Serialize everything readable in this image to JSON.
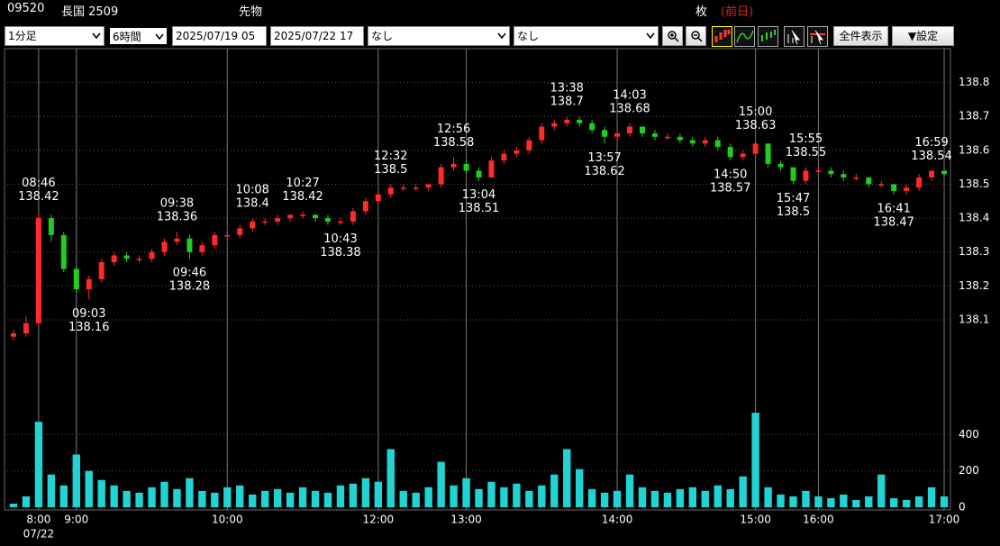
{
  "header": {
    "code": "09520",
    "name": "長国 2509",
    "kind": "先物",
    "unit": "枚",
    "prev": "(前日)"
  },
  "controls": {
    "interval": "1分足",
    "span": "6時間",
    "from": "2025/07/19 05",
    "to": "2025/07/22 17",
    "indicator1": "なし",
    "indicator2": "なし",
    "show_all": "全件表示",
    "settings": "▼設定"
  },
  "chart_data": {
    "type": "candlestick",
    "x": [
      null,
      null,
      "8:00",
      null,
      null,
      "9:00",
      null,
      null,
      null,
      null,
      null,
      null,
      null,
      null,
      null,
      null,
      null,
      "10:00",
      null,
      null,
      null,
      null,
      null,
      null,
      null,
      null,
      null,
      null,
      null,
      "12:00",
      null,
      null,
      null,
      null,
      null,
      null,
      "13:00",
      null,
      null,
      null,
      null,
      null,
      null,
      null,
      null,
      null,
      null,
      null,
      "14:00",
      null,
      null,
      null,
      null,
      null,
      null,
      null,
      null,
      null,
      null,
      "15:00",
      null,
      null,
      null,
      null,
      "16:00",
      null,
      null,
      null,
      null,
      null,
      null,
      null,
      null,
      null,
      "17:00"
    ],
    "date_label": "07/22",
    "candles": [
      [
        138.05,
        138.07,
        138.04,
        138.06
      ],
      [
        138.06,
        138.11,
        138.05,
        138.09
      ],
      [
        138.09,
        138.42,
        138.08,
        138.4
      ],
      [
        138.4,
        138.41,
        138.33,
        138.35
      ],
      [
        138.35,
        138.36,
        138.24,
        138.25
      ],
      [
        138.25,
        138.26,
        138.18,
        138.19
      ],
      [
        138.19,
        138.23,
        138.16,
        138.22
      ],
      [
        138.22,
        138.28,
        138.21,
        138.27
      ],
      [
        138.27,
        138.3,
        138.26,
        138.29
      ],
      [
        138.29,
        138.3,
        138.27,
        138.28
      ],
      [
        138.28,
        138.29,
        138.27,
        138.28
      ],
      [
        138.28,
        138.31,
        138.27,
        138.3
      ],
      [
        138.3,
        138.34,
        138.29,
        138.33
      ],
      [
        138.33,
        138.36,
        138.32,
        138.34
      ],
      [
        138.34,
        138.35,
        138.28,
        138.3
      ],
      [
        138.3,
        138.33,
        138.29,
        138.32
      ],
      [
        138.32,
        138.36,
        138.31,
        138.35
      ],
      [
        138.35,
        138.36,
        138.34,
        138.35
      ],
      [
        138.35,
        138.38,
        138.34,
        138.37
      ],
      [
        138.37,
        138.4,
        138.36,
        138.39
      ],
      [
        138.39,
        138.4,
        138.38,
        138.39
      ],
      [
        138.39,
        138.41,
        138.38,
        138.4
      ],
      [
        138.4,
        138.41,
        138.39,
        138.41
      ],
      [
        138.41,
        138.42,
        138.4,
        138.41
      ],
      [
        138.41,
        138.41,
        138.39,
        138.4
      ],
      [
        138.4,
        138.41,
        138.38,
        138.39
      ],
      [
        138.39,
        138.4,
        138.38,
        138.39
      ],
      [
        138.39,
        138.43,
        138.38,
        138.42
      ],
      [
        138.42,
        138.46,
        138.41,
        138.45
      ],
      [
        138.45,
        138.48,
        138.44,
        138.47
      ],
      [
        138.47,
        138.5,
        138.46,
        138.49
      ],
      [
        138.49,
        138.5,
        138.48,
        138.49
      ],
      [
        138.49,
        138.5,
        138.48,
        138.49
      ],
      [
        138.49,
        138.5,
        138.48,
        138.5
      ],
      [
        138.5,
        138.56,
        138.49,
        138.55
      ],
      [
        138.55,
        138.58,
        138.54,
        138.56
      ],
      [
        138.56,
        138.57,
        138.53,
        138.54
      ],
      [
        138.54,
        138.55,
        138.51,
        138.52
      ],
      [
        138.52,
        138.58,
        138.52,
        138.57
      ],
      [
        138.57,
        138.6,
        138.56,
        138.59
      ],
      [
        138.59,
        138.61,
        138.58,
        138.6
      ],
      [
        138.6,
        138.64,
        138.59,
        138.63
      ],
      [
        138.63,
        138.68,
        138.62,
        138.67
      ],
      [
        138.67,
        138.69,
        138.66,
        138.68
      ],
      [
        138.68,
        138.7,
        138.67,
        138.69
      ],
      [
        138.69,
        138.7,
        138.67,
        138.68
      ],
      [
        138.68,
        138.69,
        138.65,
        138.66
      ],
      [
        138.66,
        138.67,
        138.62,
        138.64
      ],
      [
        138.64,
        138.66,
        138.63,
        138.65
      ],
      [
        138.65,
        138.68,
        138.64,
        138.67
      ],
      [
        138.67,
        138.67,
        138.64,
        138.65
      ],
      [
        138.65,
        138.66,
        138.63,
        138.64
      ],
      [
        138.64,
        138.65,
        138.63,
        138.64
      ],
      [
        138.64,
        138.65,
        138.62,
        138.63
      ],
      [
        138.63,
        138.64,
        138.61,
        138.62
      ],
      [
        138.62,
        138.64,
        138.61,
        138.63
      ],
      [
        138.63,
        138.64,
        138.6,
        138.61
      ],
      [
        138.61,
        138.62,
        138.57,
        138.58
      ],
      [
        138.58,
        138.6,
        138.57,
        138.59
      ],
      [
        138.59,
        138.63,
        138.58,
        138.62
      ],
      [
        138.62,
        138.62,
        138.55,
        138.56
      ],
      [
        138.56,
        138.57,
        138.54,
        138.55
      ],
      [
        138.55,
        138.55,
        138.5,
        138.51
      ],
      [
        138.51,
        138.55,
        138.5,
        138.54
      ],
      [
        138.54,
        138.55,
        138.53,
        138.54
      ],
      [
        138.54,
        138.55,
        138.52,
        138.53
      ],
      [
        138.53,
        138.54,
        138.51,
        138.52
      ],
      [
        138.52,
        138.53,
        138.51,
        138.52
      ],
      [
        138.52,
        138.52,
        138.49,
        138.5
      ],
      [
        138.5,
        138.51,
        138.49,
        138.5
      ],
      [
        138.5,
        138.5,
        138.47,
        138.48
      ],
      [
        138.48,
        138.5,
        138.47,
        138.49
      ],
      [
        138.49,
        138.53,
        138.48,
        138.52
      ],
      [
        138.52,
        138.54,
        138.51,
        138.54
      ],
      [
        138.54,
        138.54,
        138.52,
        138.53
      ]
    ],
    "volume": [
      20,
      60,
      470,
      180,
      120,
      290,
      200,
      150,
      120,
      90,
      80,
      110,
      140,
      100,
      160,
      90,
      80,
      110,
      120,
      70,
      90,
      100,
      80,
      110,
      90,
      80,
      120,
      130,
      160,
      140,
      320,
      90,
      80,
      110,
      250,
      120,
      160,
      100,
      140,
      110,
      130,
      90,
      120,
      180,
      320,
      210,
      100,
      80,
      90,
      180,
      110,
      90,
      80,
      100,
      110,
      90,
      120,
      100,
      170,
      520,
      110,
      70,
      60,
      90,
      60,
      50,
      70,
      40,
      60,
      180,
      50,
      40,
      60,
      110,
      60
    ],
    "up_color": "#ff2a2a",
    "down_color": "#22cc22",
    "volume_color": "#22d3d3",
    "ylim": [
      137.85,
      138.9
    ],
    "yticks": [
      138.1,
      138.2,
      138.3,
      138.4,
      138.5,
      138.6,
      138.7,
      138.8
    ],
    "volume_ylim": [
      0,
      560
    ],
    "volume_yticks": [
      0,
      200,
      400
    ],
    "annotations": [
      {
        "index": 2,
        "time": "08:46",
        "value": 138.42,
        "position": "above"
      },
      {
        "index": 6,
        "time": "09:03",
        "value": 138.16,
        "position": "below"
      },
      {
        "index": 13,
        "time": "09:38",
        "value": 138.36,
        "position": "above"
      },
      {
        "index": 14,
        "time": "09:46",
        "value": 138.28,
        "position": "below"
      },
      {
        "index": 19,
        "time": "10:08",
        "value": 138.4,
        "position": "above"
      },
      {
        "index": 23,
        "time": "10:27",
        "value": 138.42,
        "position": "above"
      },
      {
        "index": 26,
        "time": "10:43",
        "value": 138.38,
        "position": "below"
      },
      {
        "index": 30,
        "time": "12:32",
        "value": 138.5,
        "position": "above"
      },
      {
        "index": 35,
        "time": "12:56",
        "value": 138.58,
        "position": "above"
      },
      {
        "index": 37,
        "time": "13:04",
        "value": 138.51,
        "position": "below"
      },
      {
        "index": 44,
        "time": "13:38",
        "value": 138.7,
        "position": "above"
      },
      {
        "index": 47,
        "time": "13:57",
        "value": 138.62,
        "position": "below"
      },
      {
        "index": 49,
        "time": "14:03",
        "value": 138.68,
        "position": "above"
      },
      {
        "index": 57,
        "time": "14:50",
        "value": 138.57,
        "position": "below"
      },
      {
        "index": 59,
        "time": "15:00",
        "value": 138.63,
        "position": "above"
      },
      {
        "index": 62,
        "time": "15:47",
        "value": 138.5,
        "position": "below"
      },
      {
        "index": 63,
        "time": "15:55",
        "value": 138.55,
        "position": "above"
      },
      {
        "index": 70,
        "time": "16:41",
        "value": 138.47,
        "position": "below"
      },
      {
        "index": 73,
        "time": "16:59",
        "value": 138.54,
        "position": "above"
      }
    ]
  }
}
